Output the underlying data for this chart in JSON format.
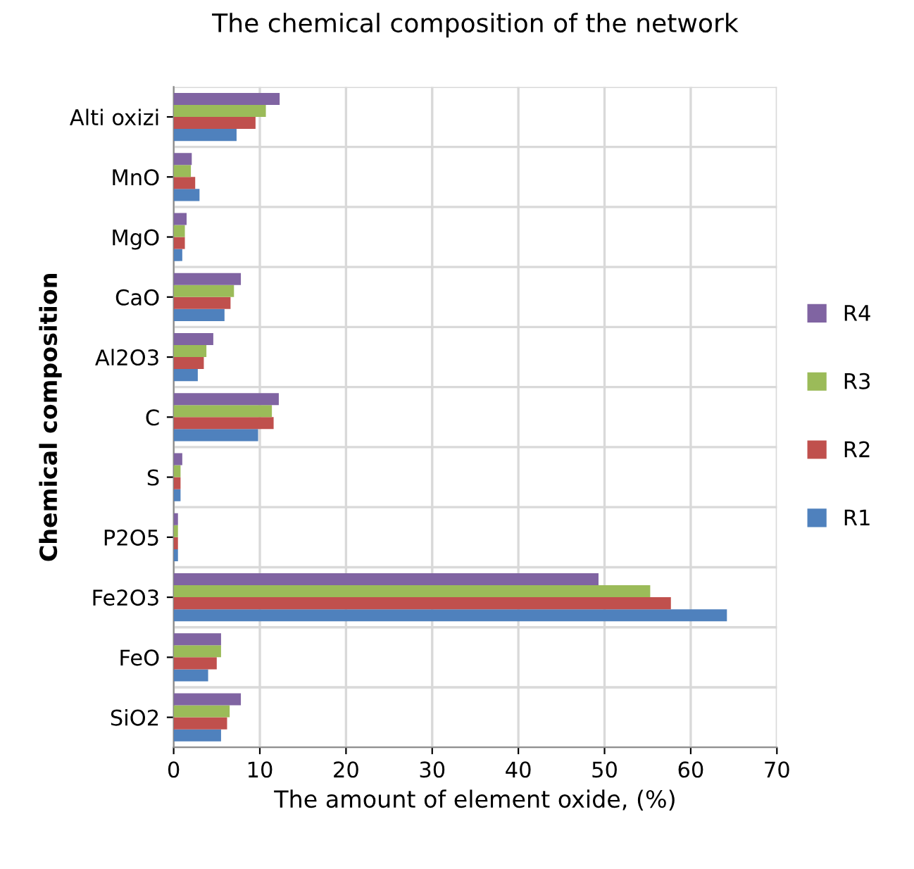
{
  "chart_data": {
    "type": "bar",
    "orientation": "horizontal",
    "title": "The chemical composition of the network",
    "xlabel": "The amount of element oxide, (%)",
    "ylabel": "Chemical composition",
    "categories": [
      "Alti oxizi",
      "MnO",
      "MgO",
      "CaO",
      "Al2O3",
      "C",
      "S",
      "P2O5",
      "Fe2O3",
      "FeO",
      "SiO2"
    ],
    "series": [
      {
        "name": "R1",
        "color": "#4f81bd",
        "values": [
          7.3,
          3.0,
          1.0,
          5.9,
          2.8,
          9.8,
          0.8,
          0.5,
          64.2,
          4.0,
          5.5
        ]
      },
      {
        "name": "R2",
        "color": "#c0504d",
        "values": [
          9.5,
          2.5,
          1.3,
          6.6,
          3.5,
          11.6,
          0.8,
          0.5,
          57.7,
          5.0,
          6.2
        ]
      },
      {
        "name": "R3",
        "color": "#9bbb59",
        "values": [
          10.7,
          2.0,
          1.3,
          7.0,
          3.8,
          11.4,
          0.8,
          0.5,
          55.3,
          5.5,
          6.5
        ]
      },
      {
        "name": "R4",
        "color": "#8064a2",
        "values": [
          12.3,
          2.1,
          1.5,
          7.8,
          4.6,
          12.2,
          1.0,
          0.5,
          49.3,
          5.5,
          7.8
        ]
      }
    ],
    "xlim": [
      0,
      70
    ],
    "xticks": [
      0,
      10,
      20,
      30,
      40,
      50,
      60,
      70
    ],
    "grid": true,
    "legend": "right"
  }
}
